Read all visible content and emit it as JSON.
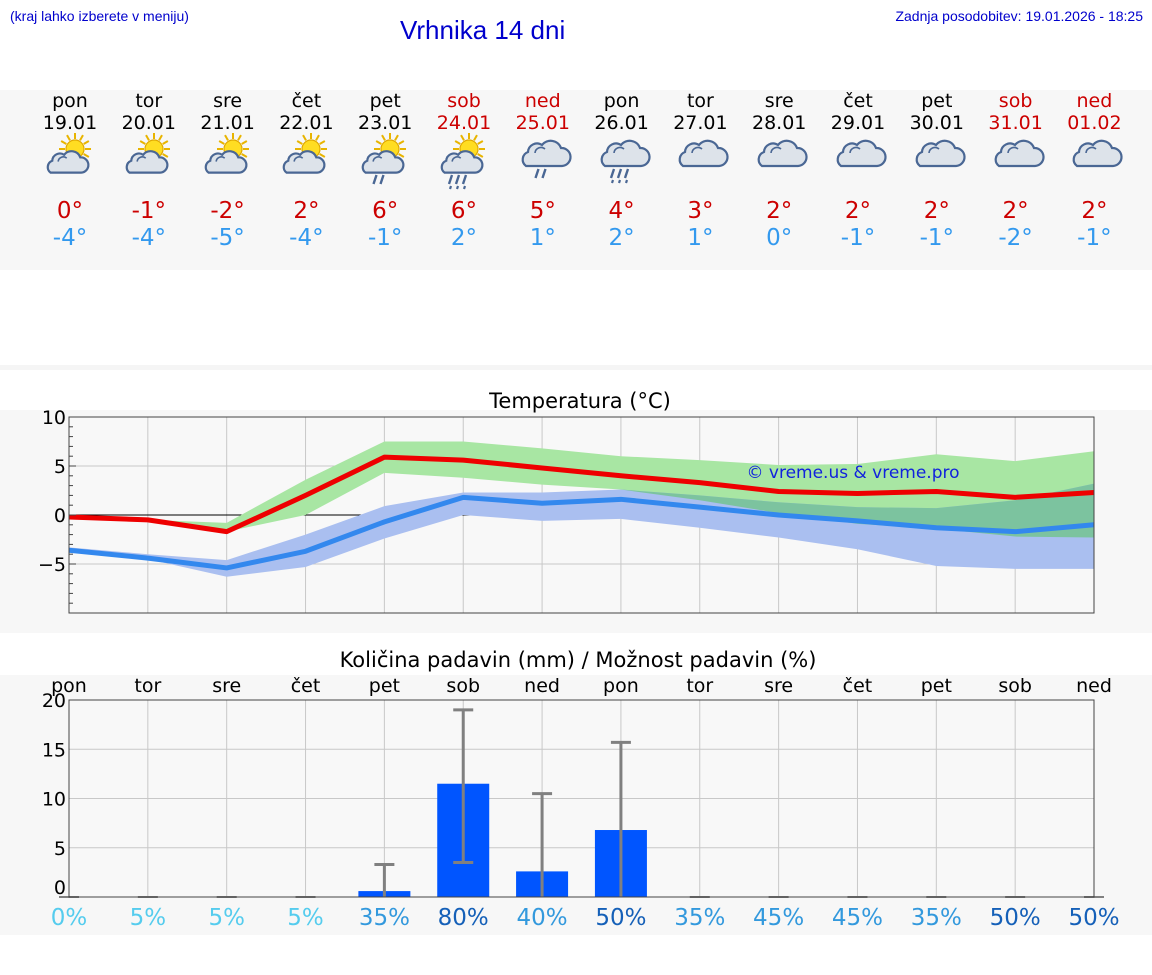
{
  "header": {
    "menu_hint": "(kraj lahko izberete v meniju)",
    "title": "Vrhnika 14 dni",
    "last_update": "Zadnja posodobitev: 19.01.2026 - 18:25"
  },
  "colors": {
    "header_text": "#0000cc",
    "weekend": "#cc0000",
    "max_temp": "#cc0000",
    "min_temp": "#3399ee",
    "max_line": "#ee0000",
    "min_line": "#3388ee",
    "max_band": "#a8e6a3",
    "min_band": "#aabff0",
    "overlap_band": "#7cc39f",
    "bar": "#0055ff",
    "error_bar": "#808080"
  },
  "days": [
    {
      "name": "pon",
      "date": "19.01",
      "weekend": false,
      "icon": "partly-cloudy-icon",
      "max": "0°",
      "min": "-4°"
    },
    {
      "name": "tor",
      "date": "20.01",
      "weekend": false,
      "icon": "partly-cloudy-icon",
      "max": "-1°",
      "min": "-4°"
    },
    {
      "name": "sre",
      "date": "21.01",
      "weekend": false,
      "icon": "partly-cloudy-icon",
      "max": "-2°",
      "min": "-5°"
    },
    {
      "name": "čet",
      "date": "22.01",
      "weekend": false,
      "icon": "partly-cloudy-icon",
      "max": "2°",
      "min": "-4°"
    },
    {
      "name": "pet",
      "date": "23.01",
      "weekend": false,
      "icon": "partly-cloudy-light-rain-icon",
      "max": "6°",
      "min": "-1°"
    },
    {
      "name": "sob",
      "date": "24.01",
      "weekend": true,
      "icon": "partly-cloudy-rain-icon",
      "max": "6°",
      "min": "2°"
    },
    {
      "name": "ned",
      "date": "25.01",
      "weekend": true,
      "icon": "cloudy-light-rain-icon",
      "max": "5°",
      "min": "1°"
    },
    {
      "name": "pon",
      "date": "26.01",
      "weekend": false,
      "icon": "cloudy-rain-icon",
      "max": "4°",
      "min": "2°"
    },
    {
      "name": "tor",
      "date": "27.01",
      "weekend": false,
      "icon": "cloudy-icon",
      "max": "3°",
      "min": "1°"
    },
    {
      "name": "sre",
      "date": "28.01",
      "weekend": false,
      "icon": "cloudy-icon",
      "max": "2°",
      "min": "0°"
    },
    {
      "name": "čet",
      "date": "29.01",
      "weekend": false,
      "icon": "cloudy-icon",
      "max": "2°",
      "min": "-1°"
    },
    {
      "name": "pet",
      "date": "30.01",
      "weekend": false,
      "icon": "cloudy-icon",
      "max": "2°",
      "min": "-1°"
    },
    {
      "name": "sob",
      "date": "31.01",
      "weekend": true,
      "icon": "cloudy-icon",
      "max": "2°",
      "min": "-2°"
    },
    {
      "name": "ned",
      "date": "01.02",
      "weekend": true,
      "icon": "cloudy-icon",
      "max": "2°",
      "min": "-1°"
    }
  ],
  "chart_data": [
    {
      "type": "line",
      "title": "Temperatura (°C)",
      "watermark": "© vreme.us & vreme.pro",
      "ylim": [
        -10,
        10
      ],
      "yticks": [
        10,
        5,
        0,
        -5
      ],
      "x": [
        0,
        1,
        2,
        3,
        4,
        5,
        6,
        7,
        8,
        9,
        10,
        11,
        12,
        13
      ],
      "grid": true,
      "series": [
        {
          "values": [
            -0.2,
            -0.5,
            -1.7,
            2.0,
            5.9,
            5.6,
            4.8,
            4.0,
            3.3,
            2.4,
            2.2,
            2.4,
            1.8,
            2.3
          ],
          "band_low": [
            -0.2,
            -0.5,
            -1.7,
            0.0,
            4.3,
            3.8,
            3.1,
            2.6,
            1.5,
            0.2,
            -0.9,
            -1.4,
            -2.2,
            -2.3
          ],
          "band_high": [
            -0.2,
            -0.5,
            -0.8,
            3.6,
            7.5,
            7.5,
            6.8,
            6.0,
            5.6,
            5.1,
            5.2,
            6.2,
            5.5,
            6.5
          ]
        },
        {
          "values": [
            -3.6,
            -4.4,
            -5.4,
            -3.7,
            -0.7,
            1.8,
            1.2,
            1.6,
            0.8,
            0.0,
            -0.6,
            -1.3,
            -1.7,
            -1.0
          ],
          "band_low": [
            -3.8,
            -4.5,
            -6.3,
            -5.3,
            -2.4,
            0.0,
            -0.6,
            -0.4,
            -1.3,
            -2.3,
            -3.5,
            -5.2,
            -5.5,
            -5.5
          ],
          "band_high": [
            -3.3,
            -4.0,
            -4.6,
            -2.0,
            0.9,
            2.3,
            2.3,
            2.6,
            2.0,
            1.3,
            0.8,
            0.7,
            1.5,
            3.2
          ]
        }
      ]
    },
    {
      "type": "bar",
      "title": "Količina padavin (mm) / Možnost padavin (%)",
      "ylim": [
        0,
        20
      ],
      "yticks": [
        20,
        15,
        10,
        5,
        0
      ],
      "categories": [
        "pon",
        "tor",
        "sre",
        "čet",
        "pet",
        "sob",
        "ned",
        "pon",
        "tor",
        "sre",
        "čet",
        "pet",
        "sob",
        "ned"
      ],
      "values": [
        0,
        0,
        0,
        0,
        0.6,
        11.5,
        2.6,
        6.8,
        0,
        0,
        0,
        0,
        0,
        0
      ],
      "error_high": [
        0,
        0,
        0,
        0,
        3.3,
        19.0,
        10.5,
        15.7,
        0,
        0,
        0,
        0,
        0,
        0
      ],
      "error_low": [
        0,
        0,
        0,
        0,
        0,
        3.5,
        0,
        0,
        0,
        0,
        0,
        0,
        0,
        0
      ],
      "probabilities": [
        "0%",
        "5%",
        "5%",
        "5%",
        "35%",
        "80%",
        "40%",
        "50%",
        "35%",
        "45%",
        "45%",
        "35%",
        "50%",
        "50%"
      ],
      "probability_values": [
        0,
        5,
        5,
        5,
        35,
        80,
        40,
        50,
        35,
        45,
        45,
        35,
        50,
        50
      ]
    }
  ]
}
